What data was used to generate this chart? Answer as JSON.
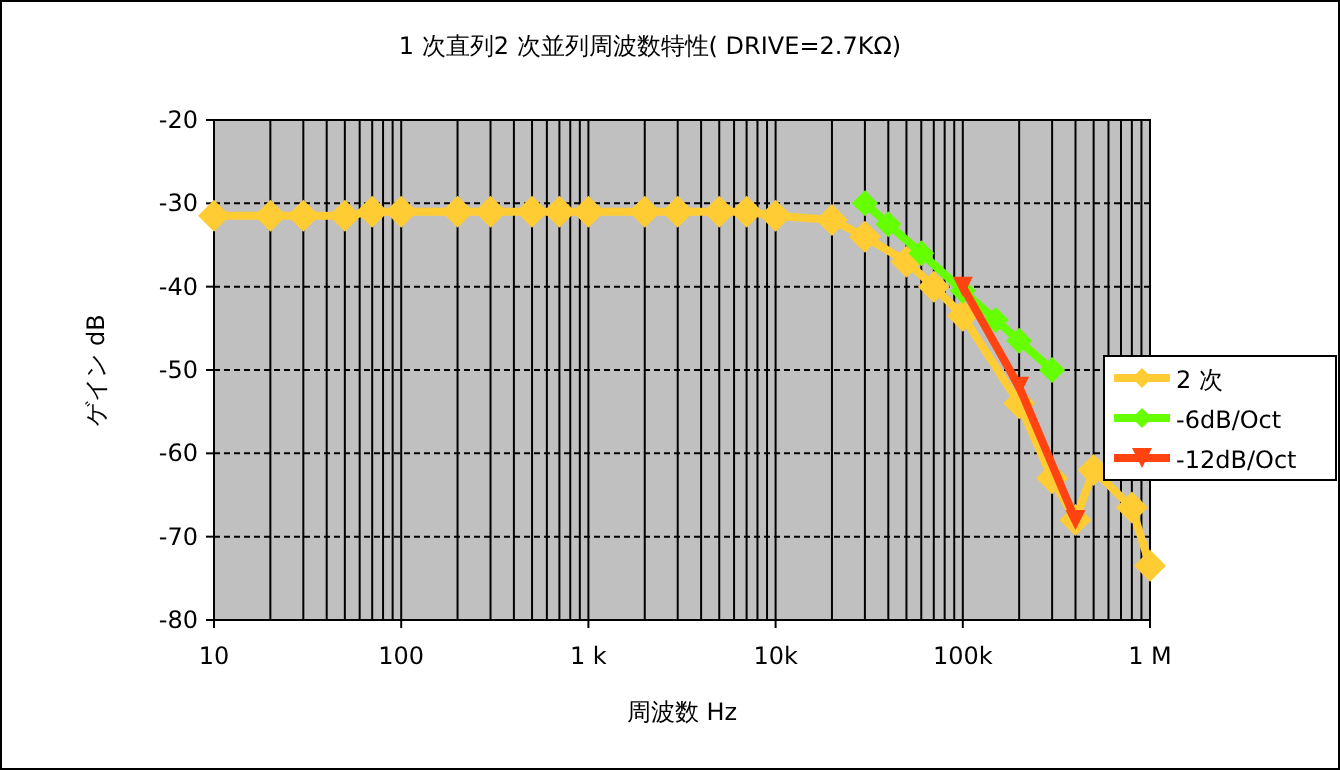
{
  "chart_data": {
    "type": "line",
    "title": "1 次直列2 次並列周波数特性( DRIVE=2.7KΩ)",
    "xlabel": "周波数 Hz",
    "ylabel": "ゲイン dB",
    "log": "x",
    "grid": true,
    "legend": "right",
    "xlim": [
      10,
      1000000
    ],
    "xticks": [
      10,
      100,
      {
        "value": 1000,
        "label": "1 k"
      },
      {
        "value": 10000,
        "label": "10k"
      },
      {
        "value": 100000,
        "label": "100k"
      },
      {
        "value": 1000000,
        "label": "1 M"
      }
    ],
    "ylim": [
      -80,
      -20
    ],
    "yticks": [
      -80,
      -70,
      -60,
      -50,
      -40,
      -30,
      -20
    ],
    "series": [
      {
        "name": "2 次",
        "color": "#ffcc33",
        "marker": "diamond",
        "x": [
          10,
          20,
          30,
          50,
          70,
          100,
          200,
          300,
          500,
          700,
          1000,
          2000,
          3000,
          5000,
          7000,
          10000,
          20000,
          30000,
          50000,
          70000,
          100000,
          200000,
          300000,
          400000,
          500000,
          800000,
          1000000
        ],
        "values": [
          -31.5,
          -31.5,
          -31.5,
          -31.5,
          -31,
          -31,
          -31,
          -31,
          -31,
          -31,
          -31,
          -31,
          -31,
          -31,
          -31,
          -31.5,
          -32,
          -34,
          -37,
          -40,
          -43.5,
          -54,
          -63,
          -68,
          -62,
          -66.5,
          -73.5
        ]
      },
      {
        "name": "-6dB/Oct",
        "color": "#66ff00",
        "marker": "diamond",
        "x": [
          30000,
          40000,
          60000,
          100000,
          150000,
          200000,
          300000
        ],
        "values": [
          -30,
          -32.5,
          -36,
          -40.5,
          -44,
          -46.5,
          -50
        ]
      },
      {
        "name": "-12dB/Oct",
        "color": "#ff4411",
        "marker": "triangle",
        "x": [
          100000,
          200000,
          400000
        ],
        "values": [
          -40,
          -52,
          -68
        ]
      }
    ]
  }
}
